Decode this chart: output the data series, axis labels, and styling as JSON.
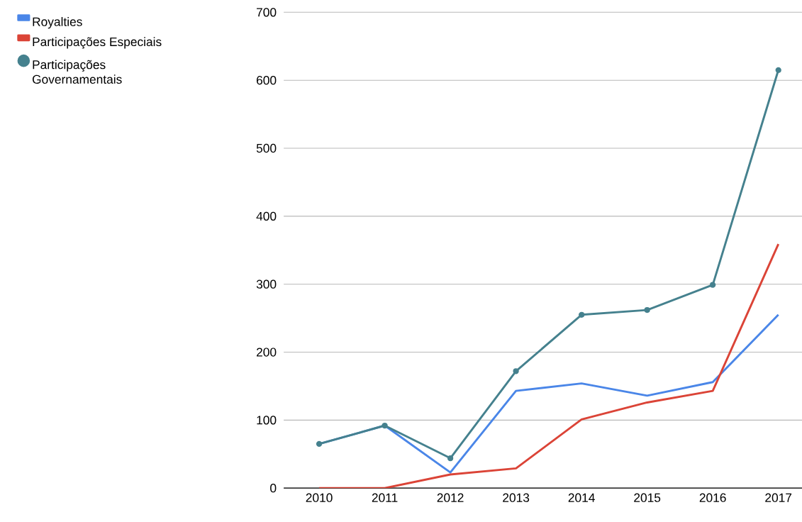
{
  "chart_data": {
    "type": "line",
    "categories": [
      "2010",
      "2011",
      "2012",
      "2013",
      "2014",
      "2015",
      "2016",
      "2017"
    ],
    "series": [
      {
        "name": "Royalties",
        "color": "#4a86e8",
        "marker": "none",
        "values": [
          65,
          92,
          23,
          143,
          154,
          136,
          156,
          255
        ]
      },
      {
        "name": "Participações Especiais",
        "color": "#db4437",
        "marker": "none",
        "values": [
          0,
          0,
          20,
          29,
          101,
          126,
          143,
          359
        ]
      },
      {
        "name": "Participações Governamentais",
        "color": "#45818e",
        "marker": "circle",
        "values": [
          65,
          92,
          44,
          172,
          255,
          262,
          299,
          615
        ]
      }
    ],
    "ylim": [
      0,
      700
    ],
    "yticks": [
      0,
      100,
      200,
      300,
      400,
      500,
      600,
      700
    ],
    "grid": "y",
    "legend": "top left"
  }
}
